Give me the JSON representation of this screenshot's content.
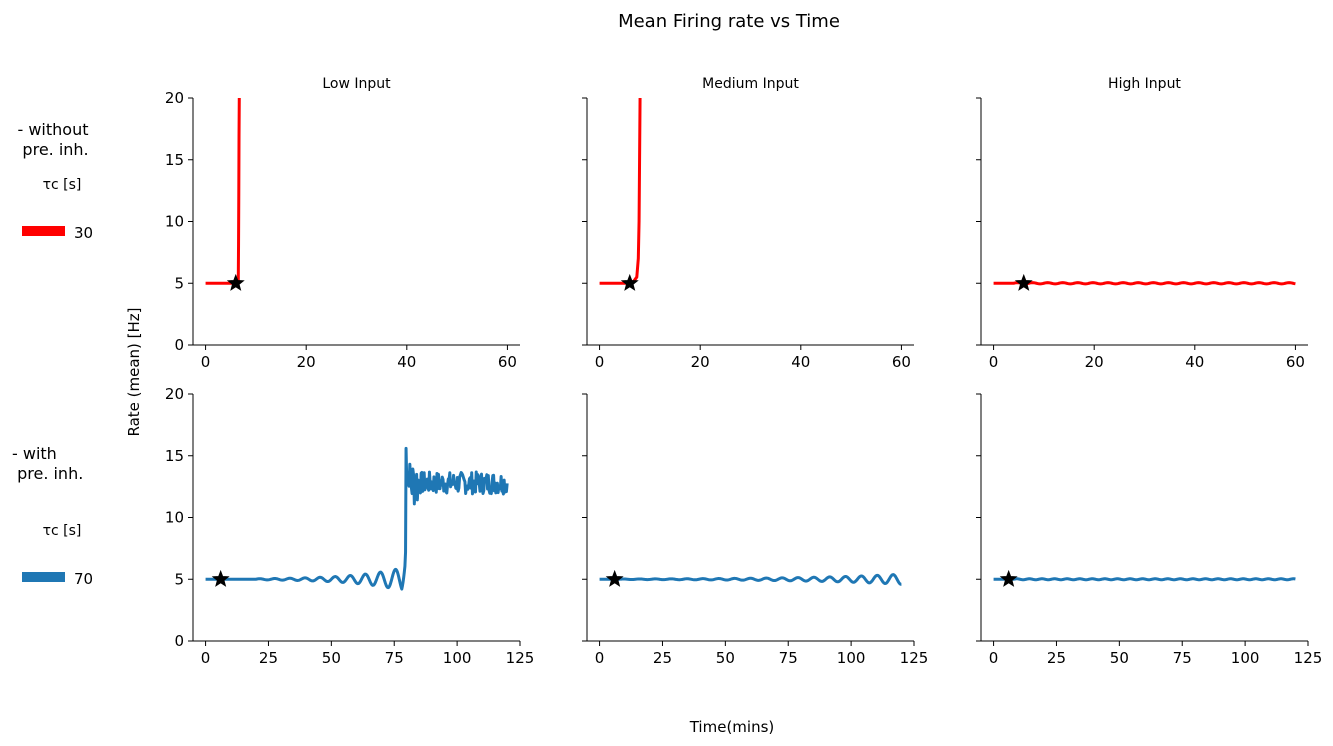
{
  "figure": {
    "title": "Mean Firing rate vs Time",
    "xlabel": "Time(mins)",
    "ylabel": "Rate (mean) [Hz]"
  },
  "legend": {
    "without": {
      "label": "- without\n pre. inh.",
      "tau_label": "τc [s]",
      "tau_value": "30",
      "color": "#ff0000"
    },
    "with": {
      "label": "- with\n  pre. inh.",
      "tau_label": "τc [s]",
      "tau_value": "70",
      "color": "#1f77b4"
    }
  },
  "colors": {
    "red": "#ff0000",
    "blue": "#1f77b4",
    "marker": "#000000"
  },
  "chart_data": [
    {
      "type": "line",
      "row": 0,
      "col": 0,
      "title": "Low Input",
      "xlim": [
        -2.5,
        62.5
      ],
      "ylim": [
        0,
        20
      ],
      "xticks": [
        0,
        20,
        40,
        60
      ],
      "yticks": [
        0,
        5,
        10,
        15,
        20
      ],
      "series_color": "red",
      "marker": [
        6,
        5
      ],
      "series": [
        {
          "name": "without pre. inh.",
          "x": [
            0,
            5.5,
            6.5,
            6.55,
            6.6,
            6.65,
            6.7
          ],
          "y": [
            5,
            5,
            5.2,
            8,
            12,
            17,
            20
          ]
        }
      ]
    },
    {
      "type": "line",
      "row": 0,
      "col": 1,
      "title": "Medium Input",
      "xlim": [
        -2.5,
        62.5
      ],
      "ylim": [
        0,
        20
      ],
      "xticks": [
        0,
        20,
        40,
        60
      ],
      "yticks": [
        0,
        5,
        10,
        15,
        20
      ],
      "series_color": "red",
      "marker": [
        6,
        5
      ],
      "series": [
        {
          "name": "without pre. inh.",
          "x": [
            0,
            6.5,
            7.4,
            7.7,
            7.85,
            7.95,
            8.05
          ],
          "y": [
            5,
            5,
            5.5,
            7,
            10,
            15,
            20
          ]
        }
      ]
    },
    {
      "type": "line",
      "row": 0,
      "col": 2,
      "title": "High Input",
      "xlim": [
        -2.5,
        62.5
      ],
      "ylim": [
        0,
        20
      ],
      "xticks": [
        0,
        20,
        40,
        60
      ],
      "yticks": [
        0,
        5,
        10,
        15,
        20
      ],
      "series_color": "red",
      "marker": [
        6,
        5
      ],
      "series": [
        {
          "name": "without pre. inh.",
          "generator": "osc",
          "xmax": 60,
          "base": 5,
          "amp0": 0.05,
          "growth": 0,
          "period": 3.0,
          "start": 4
        }
      ]
    },
    {
      "type": "line",
      "row": 1,
      "col": 0,
      "title": "",
      "xlim": [
        -5,
        125
      ],
      "ylim": [
        0,
        20
      ],
      "xticks": [
        0,
        25,
        50,
        75,
        100,
        125
      ],
      "yticks": [
        0,
        5,
        10,
        15,
        20
      ],
      "series_color": "blue",
      "marker": [
        6,
        5
      ],
      "series": [
        {
          "name": "with pre. inh.",
          "generator": "burst",
          "xmax": 120
        }
      ]
    },
    {
      "type": "line",
      "row": 1,
      "col": 1,
      "title": "",
      "xlim": [
        -5,
        125
      ],
      "ylim": [
        0,
        20
      ],
      "xticks": [
        0,
        25,
        50,
        75,
        100,
        125
      ],
      "yticks": [
        0,
        5,
        10,
        15,
        20
      ],
      "series_color": "blue",
      "marker": [
        6,
        5
      ],
      "series": [
        {
          "name": "with pre. inh.",
          "generator": "osc",
          "xmax": 120,
          "base": 5,
          "amp0": 0.02,
          "growth": 0.027,
          "period": 6.3,
          "start": 8
        }
      ]
    },
    {
      "type": "line",
      "row": 1,
      "col": 2,
      "title": "",
      "xlim": [
        -5,
        125
      ],
      "ylim": [
        0,
        20
      ],
      "xticks": [
        0,
        25,
        50,
        75,
        100,
        125
      ],
      "yticks": [
        0,
        5,
        10,
        15,
        20
      ],
      "series_color": "blue",
      "marker": [
        6,
        5
      ],
      "series": [
        {
          "name": "with pre. inh.",
          "generator": "osc",
          "xmax": 120,
          "base": 5,
          "amp0": 0.04,
          "growth": 0,
          "period": 5.0,
          "start": 8
        }
      ]
    }
  ]
}
